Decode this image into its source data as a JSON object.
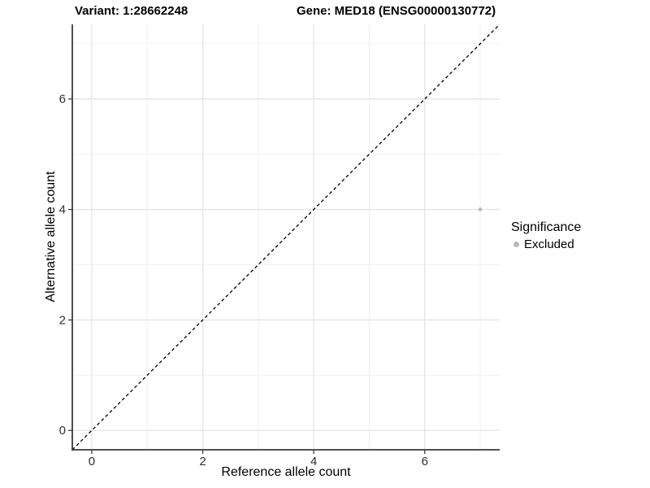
{
  "titles": {
    "variant": "Variant: 1:28662248",
    "gene": "Gene: MED18 (ENSG00000130772)"
  },
  "chart_data": {
    "type": "scatter",
    "xlabel": "Reference allele count",
    "ylabel": "Alternative allele count",
    "xlim": [
      -0.35,
      7.35
    ],
    "ylim": [
      -0.35,
      7.35
    ],
    "xticks": [
      0,
      2,
      4,
      6
    ],
    "yticks": [
      0,
      2,
      4,
      6
    ],
    "xtick_labels": [
      "0",
      "2",
      "4",
      "6"
    ],
    "ytick_labels": [
      "0",
      "2",
      "4",
      "6"
    ],
    "xminor": [
      1,
      3,
      5,
      7
    ],
    "yminor": [
      1,
      3,
      5,
      7
    ],
    "grid": true,
    "points": [
      {
        "x": 7,
        "y": 4,
        "series": "Excluded"
      }
    ],
    "identity_line": {
      "style": "dashed",
      "x1": -0.35,
      "y1": -0.35,
      "x2": 7.35,
      "y2": 7.35
    },
    "legend": {
      "title": "Significance",
      "position": "right",
      "items": [
        {
          "label": "Excluded",
          "color": "#b9b9b9"
        }
      ]
    },
    "colors": {
      "major_grid": "#e4e4e4",
      "minor_grid": "#f1f1f1",
      "axis_line": "#3a3a3a",
      "tick_label": "#303030",
      "point": "#b9b9b9",
      "identity_line": "#000000",
      "background": "#ffffff"
    }
  }
}
